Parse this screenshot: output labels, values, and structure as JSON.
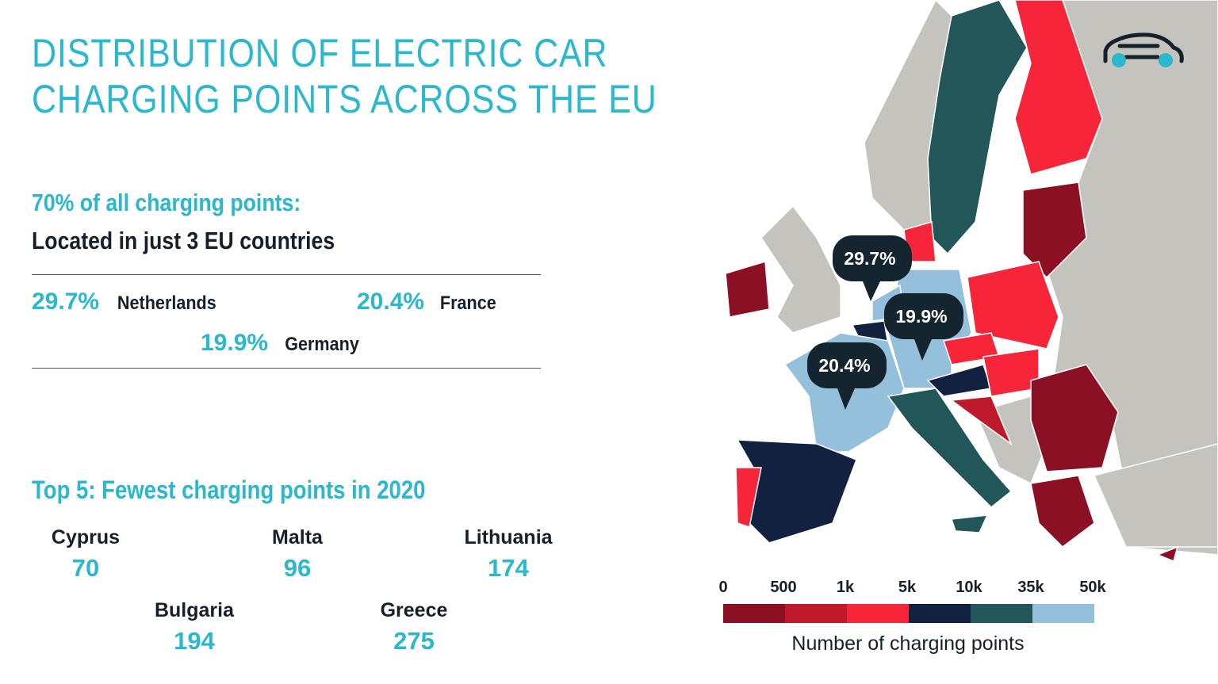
{
  "title_line1": "DISTRIBUTION OF ELECTRIC CAR",
  "title_line2": "CHARGING POINTS ACROSS THE EU",
  "highlight": {
    "heading": "70% of all charging points:",
    "subheading": "Located in just 3 EU countries",
    "items": [
      {
        "pct": "29.7%",
        "country": "Netherlands"
      },
      {
        "pct": "20.4%",
        "country": "France"
      },
      {
        "pct": "19.9%",
        "country": "Germany"
      }
    ]
  },
  "fewest": {
    "heading": "Top 5: Fewest charging points in 2020",
    "items": [
      {
        "country": "Cyprus",
        "value": "70"
      },
      {
        "country": "Malta",
        "value": "96"
      },
      {
        "country": "Lithuania",
        "value": "174"
      },
      {
        "country": "Bulgaria",
        "value": "194"
      },
      {
        "country": "Greece",
        "value": "275"
      }
    ]
  },
  "map": {
    "callouts": [
      "29.7%",
      "19.9%",
      "20.4%"
    ],
    "icon": "car-icon"
  },
  "legend": {
    "title": "Number of charging points",
    "ticks": [
      "0",
      "500",
      "1k",
      "5k",
      "10k",
      "35k",
      "50k"
    ],
    "colors": [
      "#8c1024",
      "#c0192b",
      "#f6253a",
      "#12213f",
      "#225659",
      "#95c0dc"
    ]
  }
}
